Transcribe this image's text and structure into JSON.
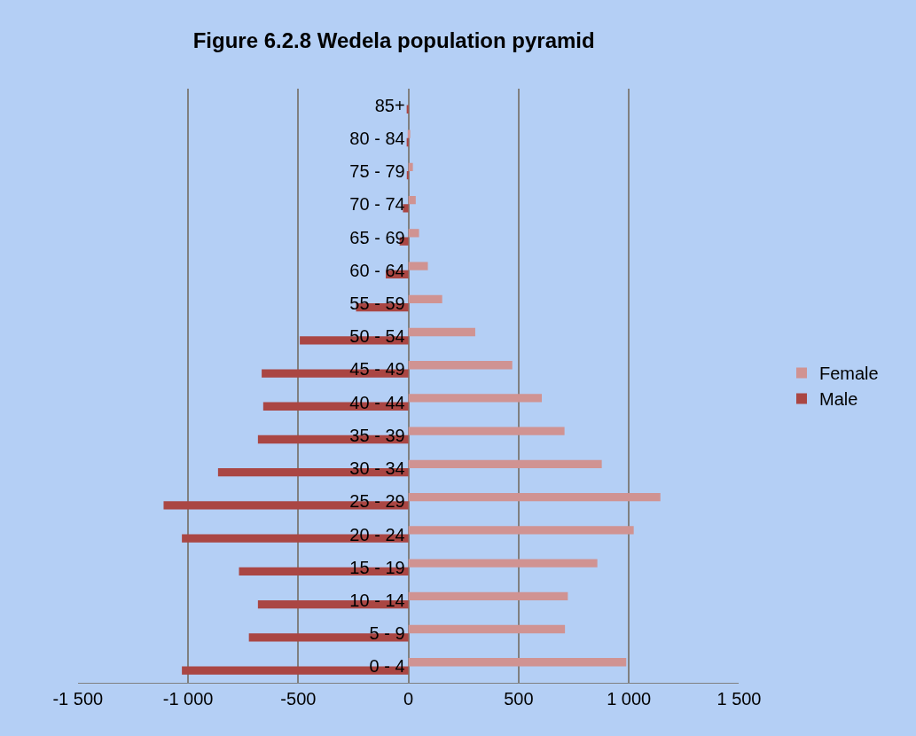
{
  "chart_data": {
    "type": "bar",
    "orientation": "horizontal",
    "title": "Figure 6.2.8 Wedela population pyramid",
    "categories": [
      "85+",
      "80 - 84",
      "75 - 79",
      "70 - 74",
      "65 - 69",
      "60 - 64",
      "55 - 59",
      "50 - 54",
      "45 - 49",
      "40 - 44",
      "35 - 39",
      "30 - 34",
      "25 - 29",
      "20 - 24",
      "15 - 19",
      "10 - 14",
      "5 - 9",
      "0 - 4"
    ],
    "series": [
      {
        "name": "Female",
        "color": "#d09392",
        "values": [
          null,
          8,
          20,
          33,
          48,
          88,
          153,
          303,
          471,
          605,
          708,
          877,
          1143,
          1022,
          857,
          723,
          710,
          988
        ]
      },
      {
        "name": "Male",
        "color": "#aa4643",
        "values": [
          -8,
          -8,
          -5,
          -25,
          -40,
          -103,
          -238,
          -493,
          -666,
          -659,
          -683,
          -864,
          -1111,
          -1028,
          -769,
          -683,
          -724,
          -1028
        ]
      }
    ],
    "xlim": [
      -1500,
      1500
    ],
    "xticks": [
      {
        "value": -1500,
        "label": "-1 500"
      },
      {
        "value": -1000,
        "label": "-1 000"
      },
      -500,
      0,
      500,
      {
        "value": 1000,
        "label": "1 000"
      },
      {
        "value": 1500,
        "label": "1 500"
      }
    ],
    "grid": "x",
    "legend": "right"
  }
}
